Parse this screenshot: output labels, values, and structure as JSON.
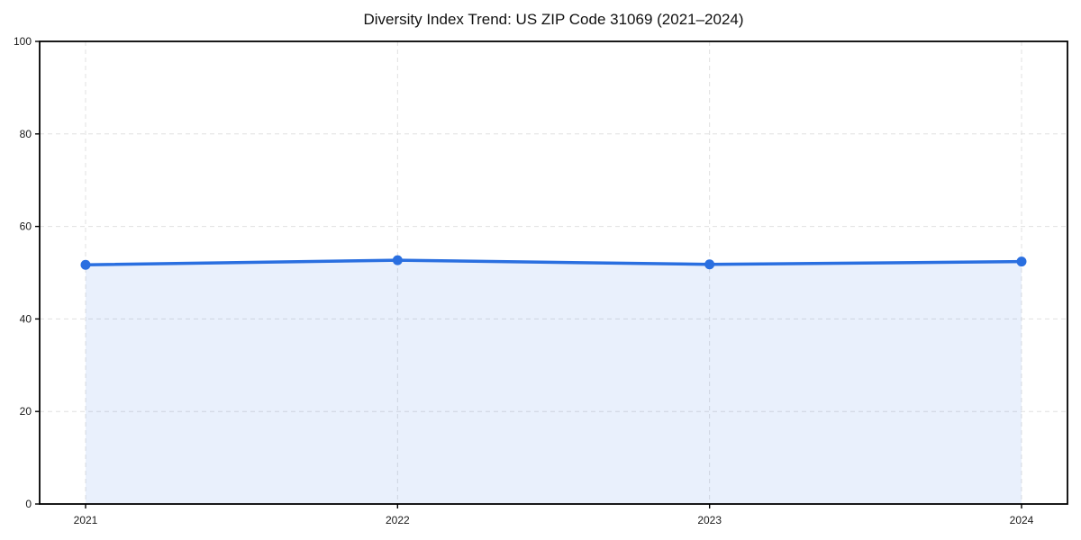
{
  "chart_data": {
    "type": "area",
    "title": "Diversity Index Trend: US ZIP Code 31069 (2021–2024)",
    "categories": [
      "2021",
      "2022",
      "2023",
      "2024"
    ],
    "series": [
      {
        "name": "Diversity Index",
        "values": [
          51.7,
          52.7,
          51.8,
          52.4
        ]
      }
    ],
    "xlabel": "",
    "ylabel": "",
    "ylim": [
      0,
      100
    ],
    "yticks": [
      0,
      20,
      40,
      60,
      80,
      100
    ],
    "grid": true,
    "grid_style": "dashed",
    "legend": false,
    "colors": {
      "line": "#2a6fe0",
      "area_fill": "#2a6fe0",
      "grid": "#e0e0e0",
      "axis": "#000000",
      "tick_text": "#1a1a1a",
      "background": "#ffffff"
    }
  }
}
